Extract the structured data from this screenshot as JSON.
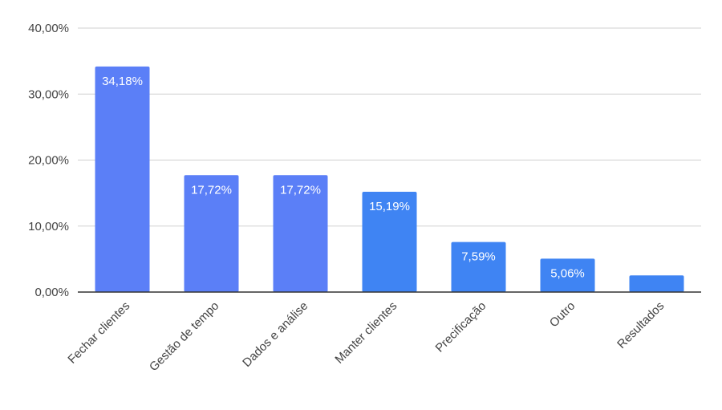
{
  "chart_data": {
    "type": "bar",
    "categories": [
      "Fechar clientes",
      "Gestão de tempo",
      "Dados e análise",
      "Manter clientes",
      "Precificação",
      "Outro",
      "Resultados"
    ],
    "values": [
      34.18,
      17.72,
      17.72,
      15.19,
      7.59,
      5.06,
      2.53
    ],
    "data_labels": [
      "34,18%",
      "17,72%",
      "17,72%",
      "15,19%",
      "7,59%",
      "5,06%",
      ""
    ],
    "bar_colors": [
      "#5b7ff7",
      "#5b7ff7",
      "#5b7ff7",
      "#3f84f3",
      "#3f84f3",
      "#3f84f3",
      "#3f84f3"
    ],
    "yticks": [
      0,
      10,
      20,
      30,
      40
    ],
    "ytick_labels": [
      "0,00%",
      "10,00%",
      "20,00%",
      "30,00%",
      "40,00%"
    ],
    "ylim": [
      0,
      40
    ],
    "title": "",
    "xlabel": "",
    "ylabel": "",
    "grid": true,
    "legend": "none"
  }
}
